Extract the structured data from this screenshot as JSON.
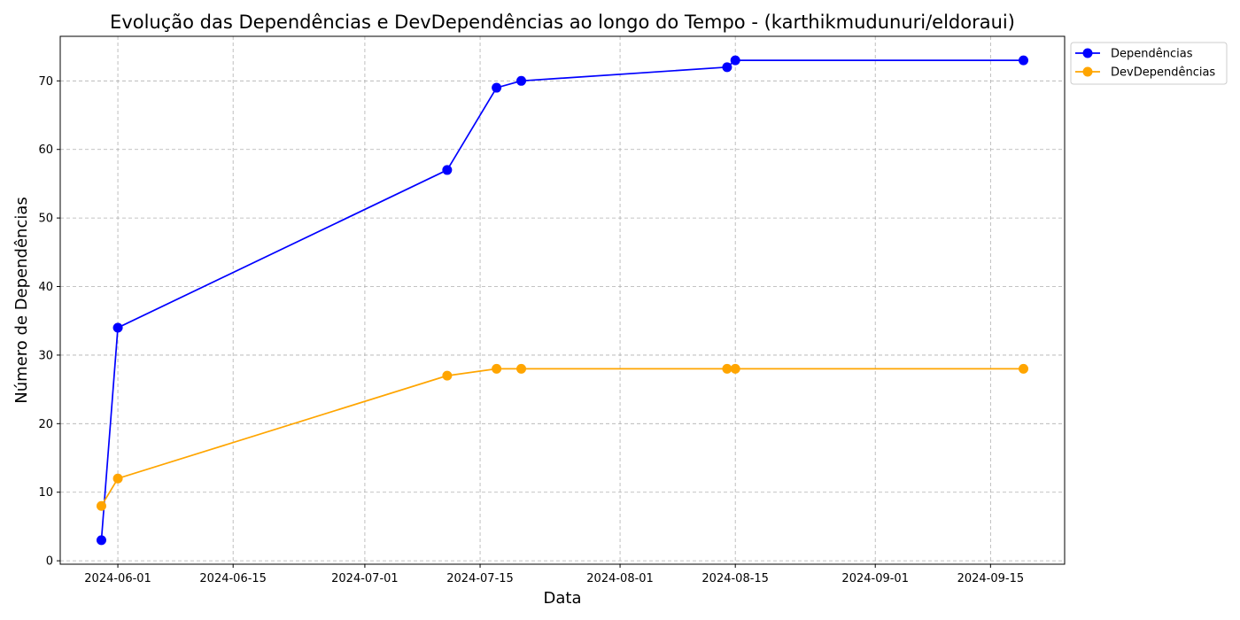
{
  "chart_data": {
    "type": "line",
    "title": "Evolução das Dependências e DevDependências ao longo do Tempo - (karthikmudunuri/eldoraui)",
    "xlabel": "Data",
    "ylabel": "Número de Dependências",
    "x_ticks": [
      "2024-06-01",
      "2024-06-15",
      "2024-07-01",
      "2024-07-15",
      "2024-08-01",
      "2024-08-15",
      "2024-09-01",
      "2024-09-15"
    ],
    "y_ticks": [
      0,
      10,
      20,
      30,
      40,
      50,
      60,
      70
    ],
    "xlim": [
      "2024-05-25",
      "2024-09-24"
    ],
    "ylim": [
      -0.5,
      76.5
    ],
    "grid": true,
    "legend_position": "outside-top-right",
    "x": [
      "2024-05-30",
      "2024-06-01",
      "2024-07-11",
      "2024-07-17",
      "2024-07-20",
      "2024-08-14",
      "2024-08-15",
      "2024-09-19"
    ],
    "series": [
      {
        "name": "Dependências",
        "color": "#0000ff",
        "values": [
          3,
          34,
          57,
          69,
          70,
          72,
          73,
          73
        ]
      },
      {
        "name": "DevDependências",
        "color": "#ffa500",
        "values": [
          8,
          12,
          27,
          28,
          28,
          28,
          28,
          28
        ]
      }
    ]
  }
}
